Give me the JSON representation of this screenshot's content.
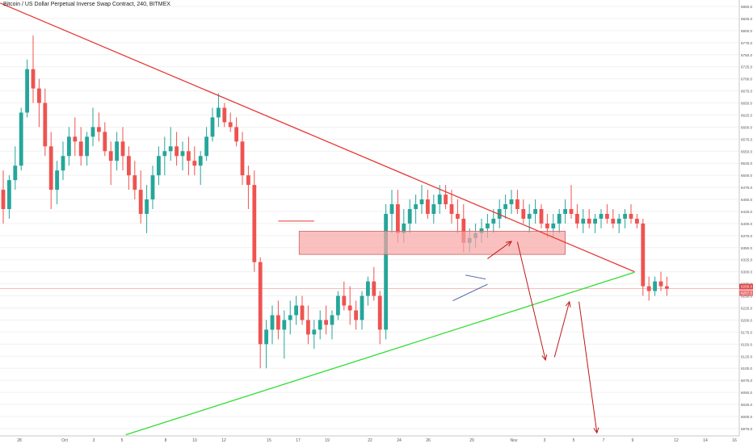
{
  "chart_data": {
    "type": "candlestick",
    "title": "Bitcoin / US Dollar Perpetual Inverse Swap Contract, 240, BITMEX",
    "ylim": [
      5962,
      6855
    ],
    "y_ticks": [
      "6850.0",
      "6825.0",
      "6800.0",
      "6775.0",
      "6750.0",
      "6725.0",
      "6700.0",
      "6675.0",
      "6650.0",
      "6625.0",
      "6600.0",
      "6575.0",
      "6550.0",
      "6525.0",
      "6500.0",
      "6475.0",
      "6450.0",
      "6425.0",
      "6400.0",
      "6375.0",
      "6350.0",
      "6325.0",
      "6300.0",
      "6275.0",
      "6250.0",
      "6225.0",
      "6200.0",
      "6175.0",
      "6150.0",
      "6125.0",
      "6100.0",
      "6075.0",
      "6050.0",
      "6025.0",
      "6000.0",
      "5975.0"
    ],
    "x_ticks": [
      "28",
      "Oct",
      "3",
      "5",
      "8",
      "10",
      "12",
      "15",
      "17",
      "19",
      "22",
      "24",
      "26",
      "29",
      "Nov",
      "3",
      "5",
      "7",
      "9",
      "12",
      "14",
      "16"
    ],
    "price_labels": [
      "6268.0",
      "6257.5"
    ],
    "colors": {
      "up": "#26a69a",
      "down": "#ef5350",
      "resistance": "#e53935",
      "support": "#33dd33",
      "zone_fill": "#f8a5a5",
      "zone_edge": "#d06060",
      "projection": "#c01818",
      "pattern": "#4060a0",
      "gridline": "#f0f0f0",
      "price_line": "#f2a8a8"
    },
    "candles": [
      [
        6470,
        6510,
        6400,
        6430
      ],
      [
        6430,
        6500,
        6410,
        6490
      ],
      [
        6490,
        6560,
        6470,
        6520
      ],
      [
        6520,
        6640,
        6510,
        6630
      ],
      [
        6630,
        6740,
        6620,
        6720
      ],
      [
        6720,
        6790,
        6650,
        6680
      ],
      [
        6680,
        6700,
        6600,
        6650
      ],
      [
        6650,
        6680,
        6540,
        6560
      ],
      [
        6560,
        6590,
        6430,
        6470
      ],
      [
        6470,
        6530,
        6440,
        6510
      ],
      [
        6510,
        6570,
        6490,
        6540
      ],
      [
        6540,
        6600,
        6520,
        6580
      ],
      [
        6580,
        6620,
        6540,
        6570
      ],
      [
        6570,
        6600,
        6520,
        6540
      ],
      [
        6540,
        6590,
        6520,
        6580
      ],
      [
        6580,
        6640,
        6560,
        6600
      ],
      [
        6600,
        6630,
        6570,
        6590
      ],
      [
        6590,
        6610,
        6540,
        6550
      ],
      [
        6550,
        6570,
        6480,
        6530
      ],
      [
        6530,
        6590,
        6510,
        6570
      ],
      [
        6570,
        6600,
        6510,
        6540
      ],
      [
        6540,
        6560,
        6470,
        6500
      ],
      [
        6500,
        6530,
        6450,
        6470
      ],
      [
        6470,
        6510,
        6400,
        6420
      ],
      [
        6420,
        6480,
        6380,
        6450
      ],
      [
        6450,
        6520,
        6430,
        6500
      ],
      [
        6500,
        6560,
        6480,
        6540
      ],
      [
        6540,
        6580,
        6500,
        6550
      ],
      [
        6550,
        6600,
        6530,
        6560
      ],
      [
        6560,
        6590,
        6520,
        6540
      ],
      [
        6540,
        6570,
        6510,
        6550
      ],
      [
        6550,
        6580,
        6500,
        6530
      ],
      [
        6530,
        6560,
        6500,
        6520
      ],
      [
        6520,
        6550,
        6480,
        6540
      ],
      [
        6540,
        6600,
        6530,
        6580
      ],
      [
        6580,
        6640,
        6570,
        6620
      ],
      [
        6620,
        6670,
        6600,
        6640
      ],
      [
        6640,
        6650,
        6600,
        6610
      ],
      [
        6610,
        6630,
        6590,
        6600
      ],
      [
        6600,
        6620,
        6560,
        6570
      ],
      [
        6570,
        6590,
        6480,
        6500
      ],
      [
        6500,
        6520,
        6430,
        6480
      ],
      [
        6480,
        6510,
        6300,
        6320
      ],
      [
        6320,
        6330,
        6100,
        6150
      ],
      [
        6150,
        6200,
        6100,
        6180
      ],
      [
        6180,
        6230,
        6150,
        6210
      ],
      [
        6210,
        6240,
        6160,
        6180
      ],
      [
        6180,
        6220,
        6120,
        6200
      ],
      [
        6200,
        6240,
        6170,
        6210
      ],
      [
        6210,
        6250,
        6190,
        6230
      ],
      [
        6230,
        6250,
        6190,
        6200
      ],
      [
        6200,
        6230,
        6150,
        6170
      ],
      [
        6170,
        6200,
        6140,
        6180
      ],
      [
        6180,
        6220,
        6160,
        6200
      ],
      [
        6200,
        6230,
        6170,
        6190
      ],
      [
        6190,
        6220,
        6160,
        6210
      ],
      [
        6210,
        6260,
        6200,
        6250
      ],
      [
        6250,
        6280,
        6220,
        6230
      ],
      [
        6230,
        6270,
        6190,
        6220
      ],
      [
        6220,
        6240,
        6180,
        6200
      ],
      [
        6200,
        6260,
        6180,
        6250
      ],
      [
        6250,
        6290,
        6230,
        6280
      ],
      [
        6280,
        6310,
        6240,
        6250
      ],
      [
        6250,
        6260,
        6150,
        6180
      ],
      [
        6180,
        6440,
        6160,
        6420
      ],
      [
        6420,
        6470,
        6380,
        6440
      ],
      [
        6440,
        6470,
        6360,
        6380
      ],
      [
        6380,
        6430,
        6360,
        6400
      ],
      [
        6400,
        6450,
        6380,
        6430
      ],
      [
        6430,
        6460,
        6400,
        6440
      ],
      [
        6440,
        6480,
        6420,
        6450
      ],
      [
        6450,
        6470,
        6410,
        6420
      ],
      [
        6420,
        6460,
        6400,
        6440
      ],
      [
        6440,
        6480,
        6420,
        6460
      ],
      [
        6460,
        6480,
        6430,
        6440
      ],
      [
        6440,
        6470,
        6400,
        6420
      ],
      [
        6420,
        6450,
        6380,
        6410
      ],
      [
        6410,
        6440,
        6340,
        6360
      ],
      [
        6360,
        6390,
        6340,
        6370
      ],
      [
        6370,
        6400,
        6350,
        6380
      ],
      [
        6380,
        6410,
        6360,
        6390
      ],
      [
        6390,
        6420,
        6370,
        6400
      ],
      [
        6400,
        6430,
        6380,
        6410
      ],
      [
        6410,
        6450,
        6390,
        6430
      ],
      [
        6430,
        6460,
        6410,
        6440
      ],
      [
        6440,
        6470,
        6420,
        6450
      ],
      [
        6450,
        6470,
        6420,
        6430
      ],
      [
        6430,
        6450,
        6400,
        6410
      ],
      [
        6410,
        6440,
        6380,
        6420
      ],
      [
        6420,
        6450,
        6400,
        6430
      ],
      [
        6430,
        6440,
        6390,
        6400
      ],
      [
        6400,
        6420,
        6370,
        6390
      ],
      [
        6390,
        6420,
        6370,
        6400
      ],
      [
        6400,
        6430,
        6380,
        6420
      ],
      [
        6420,
        6450,
        6400,
        6430
      ],
      [
        6430,
        6480,
        6410,
        6420
      ],
      [
        6420,
        6440,
        6390,
        6400
      ],
      [
        6400,
        6430,
        6380,
        6410
      ],
      [
        6410,
        6430,
        6390,
        6400
      ],
      [
        6400,
        6420,
        6380,
        6410
      ],
      [
        6410,
        6430,
        6390,
        6420
      ],
      [
        6420,
        6440,
        6400,
        6410
      ],
      [
        6410,
        6430,
        6390,
        6400
      ],
      [
        6400,
        6420,
        6380,
        6410
      ],
      [
        6410,
        6430,
        6390,
        6420
      ],
      [
        6420,
        6440,
        6400,
        6410
      ],
      [
        6410,
        6420,
        6390,
        6400
      ],
      [
        6400,
        6410,
        6250,
        6270
      ],
      [
        6270,
        6290,
        6240,
        6260
      ],
      [
        6260,
        6290,
        6250,
        6280
      ],
      [
        6280,
        6300,
        6260,
        6270
      ],
      [
        6270,
        6290,
        6250,
        6265
      ]
    ],
    "trendlines": [
      {
        "name": "resistance",
        "points": [
          [
            -0.5,
            6857
          ],
          [
            105.6,
            6300
          ]
        ]
      },
      {
        "name": "support",
        "points": [
          [
            20.5,
            5962
          ],
          [
            105.6,
            6299
          ]
        ]
      }
    ],
    "zone": {
      "x": [
        49.5,
        94
      ],
      "y": [
        6336,
        6384
      ]
    },
    "projections": [
      [
        [
          81,
          6327
        ],
        [
          85,
          6363
        ]
      ],
      [
        [
          86,
          6362
        ],
        [
          90.7,
          6117
        ]
      ],
      [
        [
          92.2,
          6123
        ],
        [
          94.7,
          6238
        ]
      ],
      [
        [
          96.3,
          6238
        ],
        [
          99.3,
          5966
        ]
      ]
    ],
    "pattern": {
      "upper": [
        [
          77.3,
          6293
        ],
        [
          80.7,
          6285
        ]
      ],
      "lower": [
        [
          75.2,
          6240
        ],
        [
          81,
          6274
        ]
      ]
    },
    "hline": {
      "value": 6405,
      "x": [
        46,
        52
      ]
    },
    "current_price": 6265
  }
}
